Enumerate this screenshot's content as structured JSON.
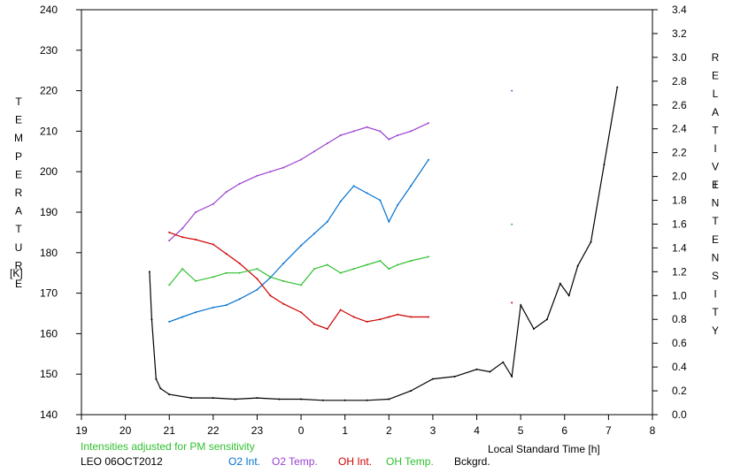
{
  "chart_data": {
    "type": "line",
    "title": "",
    "y_left_label": "TEMPERATURE",
    "y_left_unit": "[K]",
    "y_right_label": "RELATIVE INTENSITY",
    "xlabel": "Local Standard Time [h]",
    "xlim": [
      19,
      32
    ],
    "x_tick_values": [
      19,
      20,
      21,
      22,
      23,
      24,
      25,
      26,
      27,
      28,
      29,
      30,
      31,
      32
    ],
    "x_tick_labels": [
      "19",
      "20",
      "21",
      "22",
      "23",
      "0",
      "1",
      "2",
      "3",
      "4",
      "5",
      "6",
      "7",
      "8"
    ],
    "y_left_lim": [
      140,
      240
    ],
    "y_left_ticks": [
      140,
      150,
      160,
      170,
      180,
      190,
      200,
      210,
      220,
      230,
      240
    ],
    "y_right_lim": [
      0.0,
      3.4
    ],
    "y_right_ticks": [
      "0.0",
      "0.2",
      "0.4",
      "0.6",
      "0.8",
      "1.0",
      "1.2",
      "1.4",
      "1.6",
      "1.8",
      "2.0",
      "2.2",
      "2.4",
      "2.6",
      "2.8",
      "3.0",
      "3.2",
      "3.4"
    ],
    "note": "Intensities adjusted for PM sensitivity",
    "site_date": "LEO 06OCT2012",
    "series": [
      {
        "name": "O2 Int.",
        "color": "#0070d0",
        "axis": "right",
        "x": [
          21.0,
          21.3,
          21.6,
          22.0,
          22.3,
          22.6,
          23.0,
          23.3,
          23.6,
          24.0,
          24.3,
          24.6,
          24.9,
          25.2,
          25.5,
          25.8,
          26.0,
          26.2,
          26.5,
          26.9
        ],
        "y": [
          0.78,
          0.82,
          0.86,
          0.9,
          0.92,
          0.97,
          1.05,
          1.15,
          1.27,
          1.42,
          1.52,
          1.62,
          1.79,
          1.92,
          1.86,
          1.8,
          1.62,
          1.76,
          1.92,
          2.14
        ]
      },
      {
        "name": "O2 Temp.",
        "color": "#9b40d0",
        "axis": "left",
        "x": [
          21.0,
          21.3,
          21.6,
          22.0,
          22.3,
          22.6,
          23.0,
          23.3,
          23.6,
          24.0,
          24.3,
          24.6,
          24.9,
          25.2,
          25.5,
          25.8,
          26.0,
          26.2,
          26.5,
          26.9,
          28.8
        ],
        "y": [
          183,
          186,
          190,
          192,
          195,
          197,
          199,
          200,
          201,
          203,
          205,
          207,
          209,
          210,
          211,
          210,
          208,
          209,
          210,
          212,
          220
        ]
      },
      {
        "name": "OH Int.",
        "color": "#d00000",
        "axis": "right",
        "x": [
          21.0,
          21.3,
          21.6,
          22.0,
          22.3,
          22.6,
          23.0,
          23.3,
          23.6,
          24.0,
          24.3,
          24.6,
          24.9,
          25.2,
          25.5,
          25.8,
          26.0,
          26.2,
          26.5,
          26.9,
          28.8
        ],
        "y": [
          1.53,
          1.49,
          1.47,
          1.43,
          1.35,
          1.27,
          1.14,
          1.0,
          0.93,
          0.86,
          0.76,
          0.72,
          0.88,
          0.82,
          0.78,
          0.8,
          0.82,
          0.84,
          0.82,
          0.82,
          0.94
        ]
      },
      {
        "name": "OH Temp.",
        "color": "#30c030",
        "axis": "left",
        "x": [
          21.0,
          21.3,
          21.6,
          22.0,
          22.3,
          22.6,
          23.0,
          23.3,
          23.6,
          24.0,
          24.3,
          24.6,
          24.9,
          25.2,
          25.5,
          25.8,
          26.0,
          26.2,
          26.5,
          26.9,
          28.8
        ],
        "y": [
          172,
          176,
          173,
          174,
          175,
          175,
          176,
          174,
          173,
          172,
          176,
          177,
          175,
          176,
          177,
          178,
          176,
          177,
          178,
          179,
          187
        ]
      },
      {
        "name": "Bckgrd.",
        "color": "#000000",
        "axis": "right",
        "x": [
          20.55,
          20.6,
          20.7,
          20.8,
          21.0,
          21.5,
          22.0,
          22.5,
          23.0,
          23.5,
          24.0,
          24.5,
          25.0,
          25.5,
          26.0,
          26.5,
          27.0,
          27.5,
          28.0,
          28.3,
          28.6,
          28.8,
          29.0,
          29.3,
          29.6,
          29.9,
          30.1,
          30.3,
          30.6,
          30.9,
          31.2
        ],
        "y": [
          1.2,
          0.8,
          0.3,
          0.22,
          0.17,
          0.14,
          0.14,
          0.13,
          0.14,
          0.13,
          0.13,
          0.12,
          0.12,
          0.12,
          0.13,
          0.2,
          0.3,
          0.32,
          0.38,
          0.36,
          0.44,
          0.32,
          0.92,
          0.72,
          0.8,
          1.1,
          1.0,
          1.25,
          1.45,
          2.1,
          2.75
        ]
      }
    ]
  }
}
